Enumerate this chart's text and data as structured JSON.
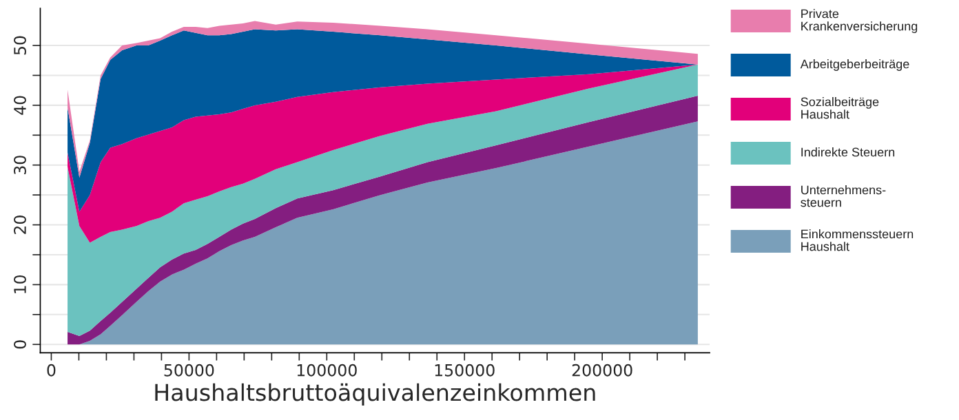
{
  "chart_data": {
    "type": "area",
    "stacked": true,
    "xlabel": "Haushaltsbruttoäquivalenzeinkommen",
    "x": [
      5900,
      10200,
      14000,
      17900,
      21400,
      25700,
      30900,
      35200,
      39500,
      43800,
      48100,
      52400,
      56700,
      61000,
      65300,
      69600,
      73900,
      81500,
      89300,
      102300,
      119500,
      136600,
      161500,
      195200,
      234700
    ],
    "series": [
      {
        "name": "Einkommenssteuern\nHaushalt",
        "color": "#7a9fba",
        "values": [
          0,
          0,
          0.6,
          1.7,
          3.1,
          4.9,
          7.1,
          8.9,
          10.5,
          11.7,
          12.5,
          13.5,
          14.4,
          15.6,
          16.6,
          17.4,
          18.0,
          19.6,
          21.2,
          22.6,
          25.0,
          27.1,
          29.5,
          33.1,
          37.3
        ]
      },
      {
        "name": "Unternehmens-\nsteuern",
        "color": "#841e80",
        "values": [
          2.1,
          1.4,
          1.7,
          2.2,
          2.2,
          2.2,
          2.2,
          2.2,
          2.4,
          2.5,
          2.7,
          2.3,
          2.4,
          2.4,
          2.6,
          2.8,
          3.0,
          3.2,
          3.2,
          3.2,
          3.1,
          3.4,
          3.8,
          4.1,
          4.3
        ]
      },
      {
        "name": "Indirekte Steuern",
        "color": "#6bc2bf",
        "values": [
          27.6,
          18.4,
          14.7,
          14.1,
          13.5,
          12.1,
          10.5,
          9.5,
          8.3,
          8.0,
          8.4,
          8.4,
          8.0,
          7.6,
          7.1,
          6.7,
          6.7,
          6.5,
          6.1,
          6.7,
          6.8,
          6.4,
          5.7,
          5.6,
          5.2
        ]
      },
      {
        "name": "Sozialbeiträge\nHaushalt",
        "color": "#e2007a",
        "values": [
          2.4,
          2.4,
          8.0,
          12.5,
          14.1,
          14.3,
          14.7,
          14.5,
          14.5,
          14.1,
          13.9,
          13.9,
          13.5,
          12.9,
          12.5,
          12.5,
          12.3,
          11.3,
          10.9,
          9.7,
          8.1,
          6.7,
          5.3,
          2.4,
          0
        ]
      },
      {
        "name": "Arbeitgeberbeiträge",
        "color": "#005a9c",
        "values": [
          7.5,
          5.7,
          8.7,
          13.9,
          14.7,
          15.7,
          15.5,
          14.9,
          15.1,
          15.4,
          15.0,
          14.0,
          13.4,
          13.2,
          13.1,
          12.9,
          12.7,
          11.9,
          11.3,
          10.1,
          8.7,
          7.4,
          5.7,
          3.3,
          0
        ]
      },
      {
        "name": "Private\nKrankenversicherung",
        "color": "#e87dad",
        "values": [
          3.0,
          1.0,
          0.4,
          0.6,
          0.4,
          0.8,
          0.4,
          0.8,
          0.4,
          0.6,
          0.6,
          1.0,
          1.2,
          1.6,
          1.6,
          1.4,
          1.4,
          1.0,
          1.3,
          1.5,
          1.6,
          1.7,
          1.7,
          1.8,
          1.8
        ]
      }
    ],
    "xlim": [
      -4000,
      239000
    ],
    "xticks": [
      0,
      {
        "value": 10000,
        "label": null
      },
      {
        "value": 20000,
        "label": null
      },
      {
        "value": 30000,
        "label": null
      },
      {
        "value": 40000,
        "label": null
      },
      50000,
      {
        "value": 60000,
        "label": null
      },
      {
        "value": 70000,
        "label": null
      },
      {
        "value": 80000,
        "label": null
      },
      {
        "value": 90000,
        "label": null
      },
      100000,
      {
        "value": 110000,
        "label": null
      },
      {
        "value": 120000,
        "label": null
      },
      {
        "value": 130000,
        "label": null
      },
      {
        "value": 140000,
        "label": null
      },
      150000,
      {
        "value": 160000,
        "label": null
      },
      {
        "value": 170000,
        "label": null
      },
      {
        "value": 180000,
        "label": null
      },
      {
        "value": 190000,
        "label": null
      },
      200000,
      {
        "value": 210000,
        "label": null
      },
      {
        "value": 220000,
        "label": null
      },
      {
        "value": 230000,
        "label": null
      }
    ],
    "ylim": [
      -1.4,
      56.2
    ],
    "yticks": [
      0,
      {
        "value": 5,
        "label": null
      },
      10,
      {
        "value": 15,
        "label": null
      },
      20,
      {
        "value": 25,
        "label": null
      },
      30,
      {
        "value": 35,
        "label": null
      },
      40,
      {
        "value": 45,
        "label": null
      },
      50
    ],
    "grid": "y",
    "legend": "right"
  }
}
